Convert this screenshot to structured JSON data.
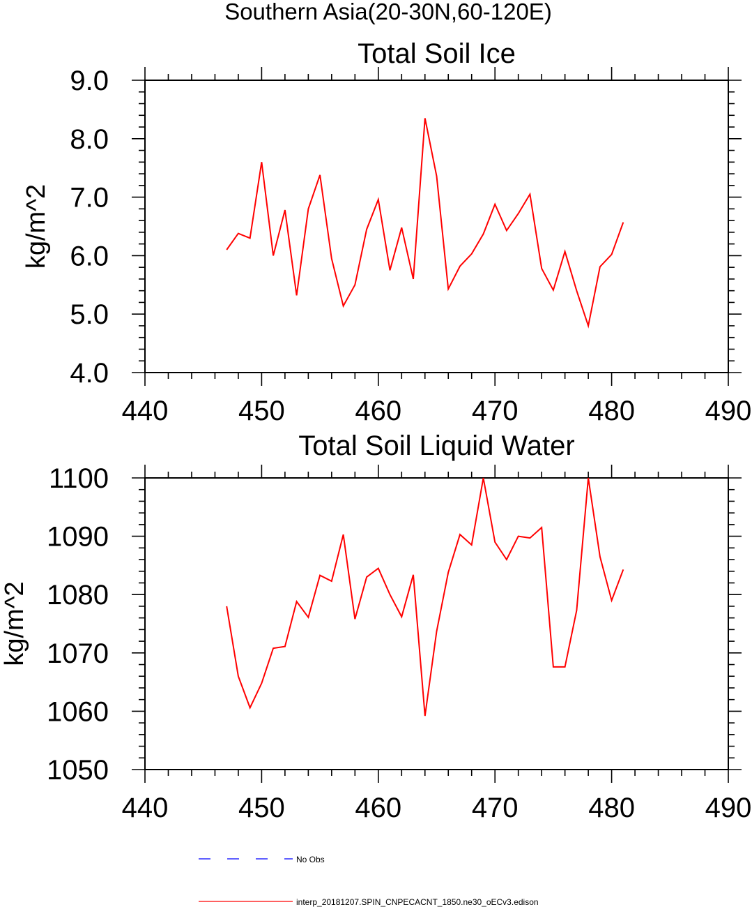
{
  "figure": {
    "suptitle": "Southern Asia(20-30N,60-120E)",
    "legend": [
      {
        "label": "No Obs",
        "color": "#0000ff",
        "style": "dashed"
      },
      {
        "label": "interp_20181207.SPIN_CNPECACNT_1850.ne30_oECv3.edison",
        "color": "#ff0000",
        "style": "solid"
      }
    ]
  },
  "chart_data": [
    {
      "type": "line",
      "title": "Total Soil Ice",
      "xlabel": "",
      "ylabel": "kg/m^2",
      "xlim": [
        440,
        490
      ],
      "ylim": [
        4.0,
        9.0
      ],
      "xticks": [
        "440",
        "450",
        "460",
        "470",
        "480",
        "490"
      ],
      "yticks": [
        "4.0",
        "5.0",
        "6.0",
        "7.0",
        "8.0",
        "9.0"
      ],
      "x": [
        447,
        448,
        449,
        450,
        451,
        452,
        453,
        454,
        455,
        456,
        457,
        458,
        459,
        460,
        461,
        462,
        463,
        464,
        465,
        466,
        467,
        468,
        469,
        470,
        471,
        472,
        473,
        474,
        475,
        476,
        477,
        478,
        479,
        480,
        481
      ],
      "series": [
        {
          "name": "interp_20181207.SPIN_CNPECACNT_1850.ne30_oECv3.edison",
          "color": "#ff0000",
          "values": [
            6.1,
            6.38,
            6.3,
            7.6,
            6.0,
            6.78,
            5.32,
            6.8,
            7.38,
            5.95,
            5.14,
            5.5,
            6.45,
            6.96,
            5.75,
            6.48,
            5.6,
            8.35,
            7.36,
            5.43,
            5.82,
            6.03,
            6.37,
            6.88,
            6.43,
            6.72,
            7.05,
            5.78,
            5.41,
            6.07,
            5.4,
            4.8,
            5.81,
            6.02,
            6.57
          ]
        }
      ]
    },
    {
      "type": "line",
      "title": "Total Soil Liquid Water",
      "xlabel": "",
      "ylabel": "kg/m^2",
      "xlim": [
        440,
        490
      ],
      "ylim": [
        1050,
        1100
      ],
      "xticks": [
        "440",
        "450",
        "460",
        "470",
        "480",
        "490"
      ],
      "yticks": [
        "1050",
        "1060",
        "1070",
        "1080",
        "1090",
        "1100"
      ],
      "x": [
        447,
        448,
        449,
        450,
        451,
        452,
        453,
        454,
        455,
        456,
        457,
        458,
        459,
        460,
        461,
        462,
        463,
        464,
        465,
        466,
        467,
        468,
        469,
        470,
        471,
        472,
        473,
        474,
        475,
        476,
        477,
        478,
        479,
        480,
        481
      ],
      "series": [
        {
          "name": "interp_20181207.SPIN_CNPECACNT_1850.ne30_oECv3.edison",
          "color": "#ff0000",
          "values": [
            1078.0,
            1066.0,
            1060.6,
            1064.8,
            1070.8,
            1071.1,
            1078.8,
            1076.1,
            1083.3,
            1082.3,
            1090.3,
            1075.8,
            1083.0,
            1084.5,
            1080.0,
            1076.2,
            1083.4,
            1059.2,
            1073.7,
            1083.8,
            1090.3,
            1088.5,
            1100.0,
            1089.0,
            1086.0,
            1090.0,
            1089.7,
            1091.5,
            1067.6,
            1067.6,
            1077.3,
            1100.0,
            1086.5,
            1079.0,
            1084.3
          ]
        }
      ]
    }
  ]
}
